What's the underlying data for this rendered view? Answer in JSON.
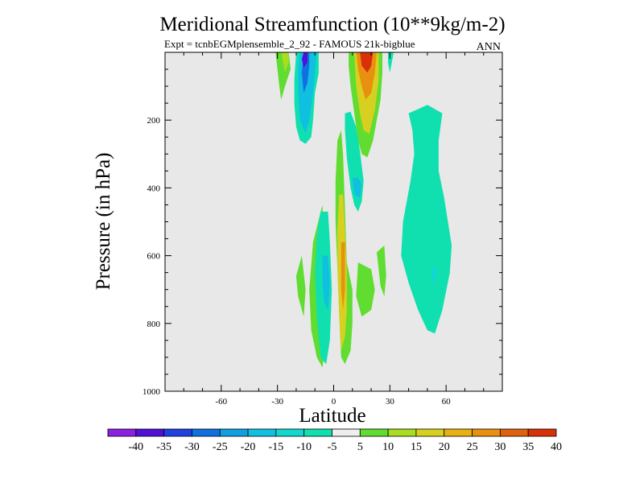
{
  "chart_data": {
    "type": "contour",
    "title": "Meridional Streamfunction (10**9kg/m-2)",
    "subtitle": "Expt = tcnbEGMplensemble_2_92 - FAMOUS 21k-bigblue",
    "annotation": "ANN",
    "xlabel": "Latitude",
    "ylabel": "Pressure (in hPa)",
    "xlim": [
      -90,
      90
    ],
    "ylim": [
      1000,
      0
    ],
    "xticks": [
      -60,
      -30,
      0,
      30,
      60
    ],
    "xtick_labels": [
      "-60",
      "-30",
      "0",
      "30",
      "60"
    ],
    "yticks": [
      200,
      400,
      600,
      800,
      1000
    ],
    "ytick_labels": [
      "200",
      "400",
      "600",
      "800",
      "1000"
    ],
    "background_color": "#e8e8e8",
    "colorbar": {
      "levels": [
        -40,
        -35,
        -30,
        -25,
        -20,
        -15,
        -10,
        -5,
        5,
        10,
        15,
        20,
        25,
        30,
        35,
        40
      ],
      "labels": [
        "-40",
        "-35",
        "-30",
        "-25",
        "-20",
        "-15",
        "-10",
        "-5",
        "5",
        "10",
        "15",
        "20",
        "25",
        "30",
        "35",
        "40"
      ],
      "colors": [
        "#8c1fe0",
        "#5010d8",
        "#2040e0",
        "#1070e0",
        "#10a0e0",
        "#10c0e0",
        "#10d8d0",
        "#10e0b0",
        "#eeeeee",
        "#60dd30",
        "#a8dd20",
        "#d8d020",
        "#e8b010",
        "#e89010",
        "#e06010",
        "#d83008"
      ]
    },
    "regions": [
      {
        "name": "upper-green-left",
        "value": 7,
        "points": [
          [
            -31,
            0
          ],
          [
            -24,
            0
          ],
          [
            -23,
            50
          ],
          [
            -26,
            100
          ],
          [
            -28,
            140
          ],
          [
            -29,
            100
          ]
        ]
      },
      {
        "name": "upper-yellow-left",
        "value": 12,
        "points": [
          [
            -28,
            0
          ],
          [
            -24,
            0
          ],
          [
            -24,
            30
          ],
          [
            -26,
            60
          ],
          [
            -27,
            30
          ]
        ]
      },
      {
        "name": "upper-negative-cell-outer",
        "value": -7,
        "points": [
          [
            -14,
            0
          ],
          [
            -8,
            0
          ],
          [
            -8,
            60
          ],
          [
            -10,
            120
          ],
          [
            -11,
            200
          ],
          [
            -12,
            250
          ],
          [
            -15,
            270
          ],
          [
            -18,
            260
          ],
          [
            -20,
            220
          ],
          [
            -21,
            150
          ],
          [
            -21,
            80
          ],
          [
            -20,
            0
          ]
        ]
      },
      {
        "name": "upper-negative-cell-mid",
        "value": -17,
        "points": [
          [
            -13,
            0
          ],
          [
            -9,
            0
          ],
          [
            -10,
            60
          ],
          [
            -11,
            120
          ],
          [
            -13,
            200
          ],
          [
            -15,
            240
          ],
          [
            -18,
            200
          ],
          [
            -19,
            120
          ],
          [
            -19,
            50
          ],
          [
            -18,
            0
          ]
        ]
      },
      {
        "name": "upper-negative-cell-inner",
        "value": -27,
        "points": [
          [
            -16,
            0
          ],
          [
            -13,
            0
          ],
          [
            -13,
            40
          ],
          [
            -14,
            90
          ],
          [
            -16,
            120
          ],
          [
            -17,
            60
          ]
        ]
      },
      {
        "name": "upper-negative-cell-core",
        "value": -37,
        "points": [
          [
            -16,
            0
          ],
          [
            -14,
            0
          ],
          [
            -14,
            30
          ],
          [
            -16,
            45
          ],
          [
            -17,
            20
          ]
        ]
      },
      {
        "name": "upper-positive-cell-outer",
        "value": 7,
        "points": [
          [
            8,
            0
          ],
          [
            26,
            0
          ],
          [
            26,
            60
          ],
          [
            25,
            140
          ],
          [
            23,
            200
          ],
          [
            21,
            260
          ],
          [
            18,
            310
          ],
          [
            15,
            300
          ],
          [
            13,
            260
          ],
          [
            11,
            180
          ],
          [
            9,
            100
          ],
          [
            8,
            40
          ]
        ]
      },
      {
        "name": "upper-positive-cell-mid",
        "value": 17,
        "points": [
          [
            11,
            0
          ],
          [
            24,
            0
          ],
          [
            24,
            80
          ],
          [
            22,
            170
          ],
          [
            19,
            240
          ],
          [
            16,
            230
          ],
          [
            14,
            180
          ],
          [
            12,
            100
          ]
        ]
      },
      {
        "name": "upper-positive-cell-inner",
        "value": 27,
        "points": [
          [
            12,
            0
          ],
          [
            23,
            0
          ],
          [
            22,
            60
          ],
          [
            20,
            120
          ],
          [
            17,
            140
          ],
          [
            15,
            100
          ],
          [
            13,
            50
          ]
        ]
      },
      {
        "name": "upper-positive-cell-core",
        "value": 37,
        "points": [
          [
            14,
            0
          ],
          [
            21,
            0
          ],
          [
            20,
            40
          ],
          [
            18,
            60
          ],
          [
            15,
            40
          ]
        ]
      },
      {
        "name": "upper-right-small-negative",
        "value": -7,
        "points": [
          [
            29,
            0
          ],
          [
            32,
            0
          ],
          [
            31,
            30
          ],
          [
            30,
            60
          ],
          [
            29,
            30
          ]
        ]
      },
      {
        "name": "mid-green-strip",
        "value": 7,
        "points": [
          [
            2,
            260
          ],
          [
            4,
            230
          ],
          [
            5,
            300
          ],
          [
            6,
            460
          ],
          [
            7,
            620
          ],
          [
            10,
            700
          ],
          [
            10,
            800
          ],
          [
            9,
            880
          ],
          [
            6,
            920
          ],
          [
            4,
            900
          ],
          [
            3,
            780
          ],
          [
            2,
            640
          ],
          [
            1,
            500
          ],
          [
            1,
            380
          ]
        ]
      },
      {
        "name": "mid-negative-tongue",
        "value": -7,
        "points": [
          [
            6,
            180
          ],
          [
            9,
            175
          ],
          [
            12,
            220
          ],
          [
            14,
            290
          ],
          [
            16,
            380
          ],
          [
            15,
            440
          ],
          [
            13,
            470
          ],
          [
            11,
            450
          ],
          [
            9,
            400
          ],
          [
            7,
            310
          ],
          [
            6,
            230
          ]
        ]
      },
      {
        "name": "mid-negative-tongue-inner",
        "value": -17,
        "points": [
          [
            10,
            370
          ],
          [
            13,
            370
          ],
          [
            15,
            390
          ],
          [
            14,
            430
          ],
          [
            11,
            420
          ]
        ]
      },
      {
        "name": "lower-green-left",
        "value": 7,
        "points": [
          [
            -17,
            600
          ],
          [
            -20,
            660
          ],
          [
            -19,
            720
          ],
          [
            -16,
            780
          ],
          [
            -15,
            700
          ]
        ]
      },
      {
        "name": "lower-green-center",
        "value": 7,
        "points": [
          [
            -6,
            450
          ],
          [
            -11,
            560
          ],
          [
            -13,
            700
          ],
          [
            -12,
            820
          ],
          [
            -9,
            900
          ],
          [
            -6,
            930
          ],
          [
            -5,
            890
          ],
          [
            -5,
            760
          ],
          [
            -5,
            580
          ]
        ]
      },
      {
        "name": "lower-negative-cell",
        "value": -7,
        "points": [
          [
            -7,
            470
          ],
          [
            -3,
            470
          ],
          [
            -2,
            560
          ],
          [
            -1,
            700
          ],
          [
            -2,
            850
          ],
          [
            -4,
            920
          ],
          [
            -7,
            900
          ],
          [
            -9,
            780
          ],
          [
            -10,
            650
          ],
          [
            -9,
            540
          ]
        ]
      },
      {
        "name": "lower-negative-cell-inner",
        "value": -17,
        "points": [
          [
            -6,
            600
          ],
          [
            -3,
            600
          ],
          [
            -2,
            680
          ],
          [
            -3,
            760
          ],
          [
            -5,
            740
          ],
          [
            -6,
            680
          ]
        ]
      },
      {
        "name": "lower-positive-column",
        "value": 17,
        "points": [
          [
            3,
            420
          ],
          [
            5,
            420
          ],
          [
            6,
            520
          ],
          [
            7,
            640
          ],
          [
            7,
            760
          ],
          [
            6,
            840
          ],
          [
            4,
            880
          ],
          [
            3,
            780
          ],
          [
            2,
            640
          ],
          [
            2,
            520
          ]
        ]
      },
      {
        "name": "lower-positive-column-inner",
        "value": 27,
        "points": [
          [
            4,
            560
          ],
          [
            6,
            560
          ],
          [
            6,
            700
          ],
          [
            5,
            760
          ],
          [
            4,
            700
          ]
        ]
      },
      {
        "name": "lower-green-right-a",
        "value": 7,
        "points": [
          [
            13,
            620
          ],
          [
            20,
            640
          ],
          [
            22,
            700
          ],
          [
            20,
            760
          ],
          [
            15,
            780
          ],
          [
            12,
            720
          ]
        ]
      },
      {
        "name": "lower-green-right-b",
        "value": 7,
        "points": [
          [
            23,
            590
          ],
          [
            27,
            570
          ],
          [
            28,
            660
          ],
          [
            27,
            720
          ],
          [
            25,
            690
          ]
        ]
      },
      {
        "name": "right-negative-cell",
        "value": -7,
        "points": [
          [
            40,
            180
          ],
          [
            50,
            155
          ],
          [
            58,
            180
          ],
          [
            56,
            260
          ],
          [
            56,
            350
          ],
          [
            59,
            430
          ],
          [
            63,
            570
          ],
          [
            62,
            650
          ],
          [
            58,
            760
          ],
          [
            54,
            830
          ],
          [
            50,
            820
          ],
          [
            45,
            760
          ],
          [
            40,
            680
          ],
          [
            36,
            600
          ],
          [
            37,
            500
          ],
          [
            41,
            380
          ],
          [
            43,
            300
          ],
          [
            42,
            230
          ]
        ]
      },
      {
        "name": "right-negative-cell-inner",
        "value": -15,
        "points": [
          [
            52,
            640
          ],
          [
            54,
            630
          ],
          [
            55,
            660
          ],
          [
            53,
            690
          ]
        ]
      }
    ]
  }
}
